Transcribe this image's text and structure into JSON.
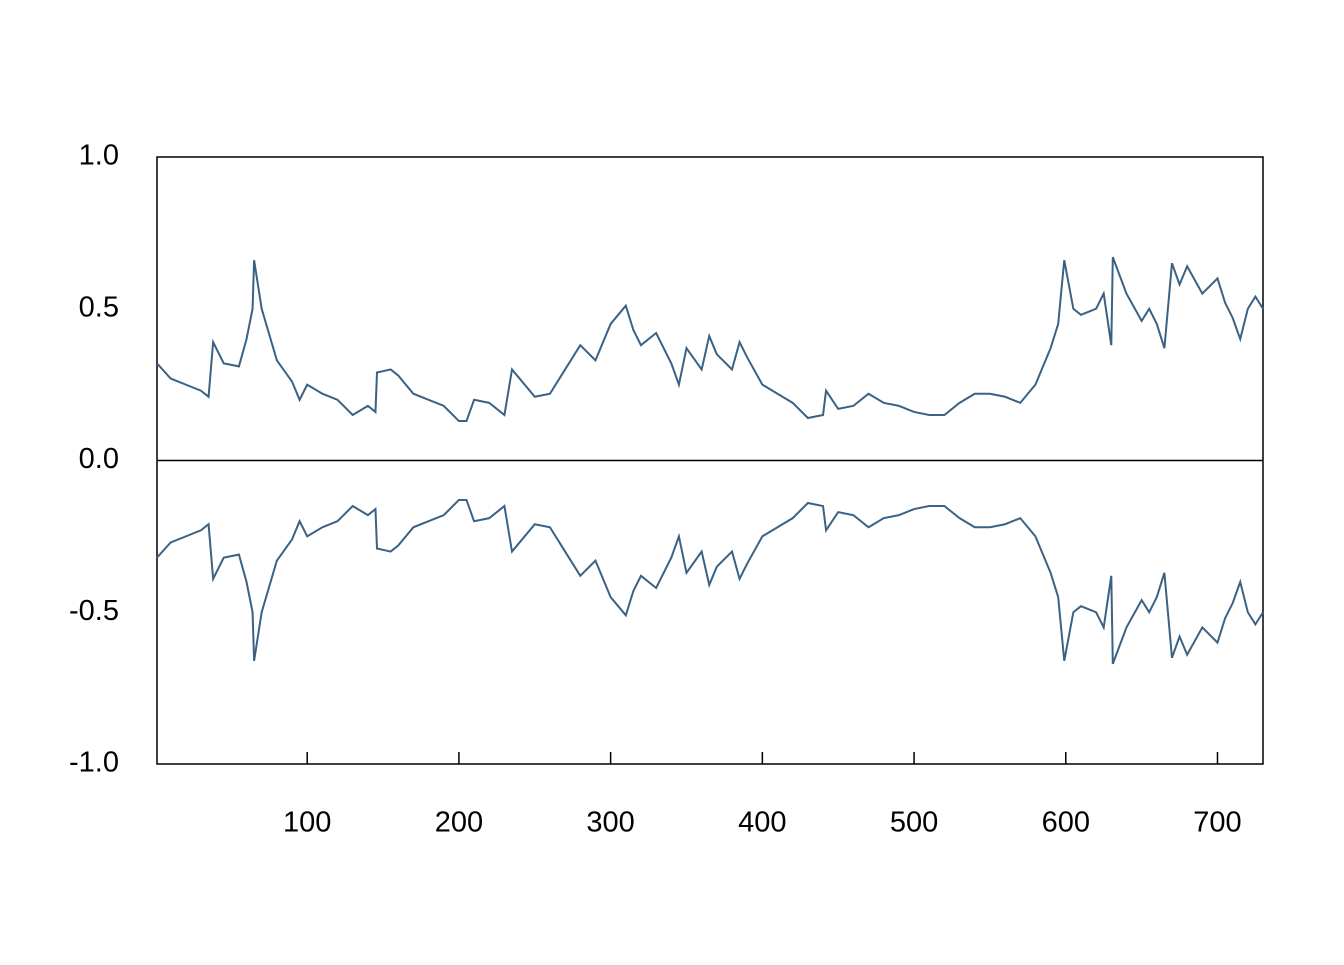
{
  "chart_data": {
    "type": "line",
    "x": [
      1,
      10,
      20,
      30,
      35,
      38,
      45,
      55,
      60,
      64,
      65,
      70,
      80,
      90,
      95,
      100,
      110,
      120,
      130,
      140,
      145,
      146,
      155,
      160,
      170,
      180,
      190,
      200,
      205,
      210,
      220,
      230,
      235,
      240,
      250,
      260,
      270,
      280,
      290,
      300,
      305,
      310,
      315,
      320,
      330,
      340,
      345,
      350,
      360,
      365,
      370,
      380,
      385,
      390,
      400,
      410,
      420,
      430,
      440,
      442,
      450,
      460,
      470,
      480,
      490,
      500,
      510,
      520,
      530,
      540,
      550,
      560,
      570,
      580,
      590,
      595,
      599,
      605,
      610,
      620,
      625,
      630,
      631,
      640,
      650,
      655,
      660,
      665,
      670,
      675,
      680,
      690,
      700,
      705,
      710,
      715,
      720,
      725,
      730
    ],
    "series": [
      {
        "color": "#3b6185",
        "values": [
          0.32,
          0.27,
          0.25,
          0.23,
          0.21,
          0.39,
          0.32,
          0.31,
          0.4,
          0.5,
          0.66,
          0.5,
          0.33,
          0.26,
          0.2,
          0.25,
          0.22,
          0.2,
          0.15,
          0.18,
          0.16,
          0.29,
          0.3,
          0.28,
          0.22,
          0.2,
          0.18,
          0.13,
          0.13,
          0.2,
          0.19,
          0.15,
          0.3,
          0.27,
          0.21,
          0.22,
          0.3,
          0.38,
          0.33,
          0.45,
          0.48,
          0.51,
          0.43,
          0.38,
          0.42,
          0.32,
          0.25,
          0.37,
          0.3,
          0.41,
          0.35,
          0.3,
          0.39,
          0.34,
          0.25,
          0.22,
          0.19,
          0.14,
          0.15,
          0.23,
          0.17,
          0.18,
          0.22,
          0.19,
          0.18,
          0.16,
          0.15,
          0.15,
          0.19,
          0.22,
          0.22,
          0.21,
          0.19,
          0.25,
          0.37,
          0.45,
          0.66,
          0.5,
          0.48,
          0.5,
          0.55,
          0.38,
          0.67,
          0.55,
          0.46,
          0.5,
          0.45,
          0.37,
          0.65,
          0.58,
          0.64,
          0.55,
          0.6,
          0.52,
          0.47,
          0.4,
          0.5,
          0.54,
          0.5
        ]
      },
      {
        "color": "#3b6185",
        "values": [
          -0.32,
          -0.27,
          -0.25,
          -0.23,
          -0.21,
          -0.39,
          -0.32,
          -0.31,
          -0.4,
          -0.5,
          -0.66,
          -0.5,
          -0.33,
          -0.26,
          -0.2,
          -0.25,
          -0.22,
          -0.2,
          -0.15,
          -0.18,
          -0.16,
          -0.29,
          -0.3,
          -0.28,
          -0.22,
          -0.2,
          -0.18,
          -0.13,
          -0.13,
          -0.2,
          -0.19,
          -0.15,
          -0.3,
          -0.27,
          -0.21,
          -0.22,
          -0.3,
          -0.38,
          -0.33,
          -0.45,
          -0.48,
          -0.51,
          -0.43,
          -0.38,
          -0.42,
          -0.32,
          -0.25,
          -0.37,
          -0.3,
          -0.41,
          -0.35,
          -0.3,
          -0.39,
          -0.34,
          -0.25,
          -0.22,
          -0.19,
          -0.14,
          -0.15,
          -0.23,
          -0.17,
          -0.18,
          -0.22,
          -0.19,
          -0.18,
          -0.16,
          -0.15,
          -0.15,
          -0.19,
          -0.22,
          -0.22,
          -0.21,
          -0.19,
          -0.25,
          -0.37,
          -0.45,
          -0.66,
          -0.5,
          -0.48,
          -0.5,
          -0.55,
          -0.38,
          -0.67,
          -0.55,
          -0.46,
          -0.5,
          -0.45,
          -0.37,
          -0.65,
          -0.58,
          -0.64,
          -0.55,
          -0.6,
          -0.52,
          -0.47,
          -0.4,
          -0.5,
          -0.54,
          -0.5
        ]
      }
    ],
    "xlim": [
      1,
      730
    ],
    "xticks": [
      100,
      200,
      300,
      400,
      500,
      600,
      700
    ],
    "ylim": [
      -1,
      1
    ],
    "yticks": [
      {
        "value": 1,
        "label": "1.0"
      },
      0.5,
      {
        "value": 0,
        "label": "0.0"
      },
      -0.5,
      {
        "value": -1,
        "label": "-1.0"
      }
    ],
    "hline": 0
  }
}
